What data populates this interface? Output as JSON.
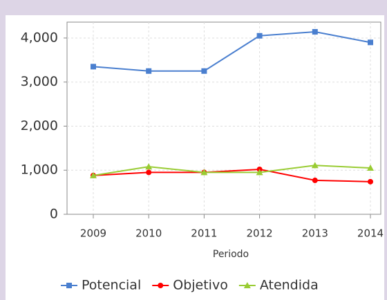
{
  "chart_data": {
    "type": "line",
    "x_label": "Periodo",
    "categories": [
      "2009",
      "2010",
      "2011",
      "2012",
      "2013",
      "2014"
    ],
    "series": [
      {
        "name": "Potencial",
        "color": "#4a7fcf",
        "marker": "square",
        "values": [
          3350,
          3250,
          3250,
          4050,
          4140,
          3900
        ]
      },
      {
        "name": "Objetivo",
        "color": "#ff0000",
        "marker": "circle",
        "values": [
          880,
          950,
          950,
          1020,
          770,
          740
        ]
      },
      {
        "name": "Atendida",
        "color": "#99cc33",
        "marker": "triangle",
        "values": [
          880,
          1080,
          950,
          950,
          1110,
          1050
        ]
      }
    ],
    "ylim": [
      0,
      4360
    ],
    "yticks": [
      0,
      {
        "value": 1000,
        "label": "1,000"
      },
      {
        "value": 2000,
        "label": "2,000"
      },
      {
        "value": 3000,
        "label": "3,000"
      },
      {
        "value": 4000,
        "label": "4,000"
      }
    ],
    "grid": true,
    "legend": "bottom"
  }
}
